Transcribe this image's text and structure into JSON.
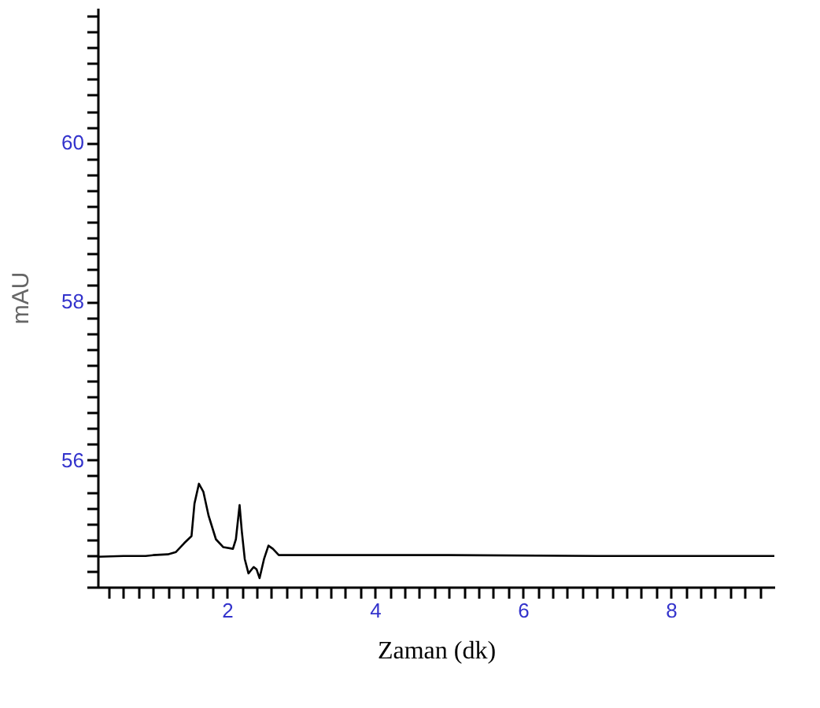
{
  "chart_data": {
    "type": "line",
    "xlabel": "Zaman (dk)",
    "ylabel": "mAU",
    "x": [
      0.25,
      0.6,
      0.9,
      1.0,
      1.2,
      1.31,
      1.42,
      1.52,
      1.56,
      1.62,
      1.68,
      1.75,
      1.85,
      1.95,
      2.08,
      2.12,
      2.17,
      2.2,
      2.24,
      2.29,
      2.36,
      2.4,
      2.44,
      2.5,
      2.56,
      2.62,
      2.7,
      3.5,
      5.0,
      7.0,
      9.4
    ],
    "series": [
      {
        "color": "#000000",
        "values": [
          54.78,
          54.79,
          54.79,
          54.8,
          54.81,
          54.84,
          54.95,
          55.04,
          55.45,
          55.7,
          55.6,
          55.3,
          55.0,
          54.9,
          54.88,
          55.0,
          55.43,
          55.1,
          54.75,
          54.57,
          54.65,
          54.62,
          54.51,
          54.75,
          54.92,
          54.88,
          54.8,
          54.8,
          54.8,
          54.79,
          54.79
        ]
      }
    ],
    "xlim": [
      0.25,
      9.4
    ],
    "ylim": [
      54.4,
      61.7
    ],
    "xticks": [
      {
        "value": 0.4,
        "label": null
      },
      {
        "value": 0.6,
        "label": null
      },
      {
        "value": 0.8,
        "label": null
      },
      {
        "value": 1.0,
        "label": null
      },
      {
        "value": 1.2,
        "label": null
      },
      {
        "value": 1.4,
        "label": null
      },
      {
        "value": 1.6,
        "label": null
      },
      {
        "value": 1.8,
        "label": null
      },
      2,
      {
        "value": 2.2,
        "label": null
      },
      {
        "value": 2.4,
        "label": null
      },
      {
        "value": 2.6,
        "label": null
      },
      {
        "value": 2.8,
        "label": null
      },
      {
        "value": 3.0,
        "label": null
      },
      {
        "value": 3.2,
        "label": null
      },
      {
        "value": 3.4,
        "label": null
      },
      {
        "value": 3.6,
        "label": null
      },
      {
        "value": 3.8,
        "label": null
      },
      4,
      {
        "value": 4.2,
        "label": null
      },
      {
        "value": 4.4,
        "label": null
      },
      {
        "value": 4.6,
        "label": null
      },
      {
        "value": 4.8,
        "label": null
      },
      {
        "value": 5.0,
        "label": null
      },
      {
        "value": 5.2,
        "label": null
      },
      {
        "value": 5.4,
        "label": null
      },
      {
        "value": 5.6,
        "label": null
      },
      {
        "value": 5.8,
        "label": null
      },
      6,
      {
        "value": 6.2,
        "label": null
      },
      {
        "value": 6.4,
        "label": null
      },
      {
        "value": 6.6,
        "label": null
      },
      {
        "value": 6.8,
        "label": null
      },
      {
        "value": 7.0,
        "label": null
      },
      {
        "value": 7.2,
        "label": null
      },
      {
        "value": 7.4,
        "label": null
      },
      {
        "value": 7.6,
        "label": null
      },
      {
        "value": 7.8,
        "label": null
      },
      8,
      {
        "value": 8.2,
        "label": null
      },
      {
        "value": 8.4,
        "label": null
      },
      {
        "value": 8.6,
        "label": null
      },
      {
        "value": 8.8,
        "label": null
      },
      {
        "value": 9.0,
        "label": null
      },
      {
        "value": 9.2,
        "label": null
      }
    ],
    "yticks": [
      {
        "value": 54.4,
        "label": null
      },
      {
        "value": 54.6,
        "label": null
      },
      {
        "value": 54.8,
        "label": null
      },
      {
        "value": 55.0,
        "label": null
      },
      {
        "value": 55.2,
        "label": null
      },
      {
        "value": 55.4,
        "label": null
      },
      {
        "value": 55.6,
        "label": null
      },
      {
        "value": 55.8,
        "label": null
      },
      56,
      {
        "value": 56.2,
        "label": null
      },
      {
        "value": 56.4,
        "label": null
      },
      {
        "value": 56.6,
        "label": null
      },
      {
        "value": 56.8,
        "label": null
      },
      {
        "value": 57.0,
        "label": null
      },
      {
        "value": 57.2,
        "label": null
      },
      {
        "value": 57.4,
        "label": null
      },
      {
        "value": 57.6,
        "label": null
      },
      {
        "value": 57.8,
        "label": null
      },
      58,
      {
        "value": 58.2,
        "label": null
      },
      {
        "value": 58.4,
        "label": null
      },
      {
        "value": 58.6,
        "label": null
      },
      {
        "value": 58.8,
        "label": null
      },
      {
        "value": 59.0,
        "label": null
      },
      {
        "value": 59.2,
        "label": null
      },
      {
        "value": 59.4,
        "label": null
      },
      {
        "value": 59.6,
        "label": null
      },
      {
        "value": 59.8,
        "label": null
      },
      60,
      {
        "value": 60.2,
        "label": null
      },
      {
        "value": 60.4,
        "label": null
      },
      {
        "value": 60.6,
        "label": null
      },
      {
        "value": 60.8,
        "label": null
      },
      {
        "value": 61.0,
        "label": null
      },
      {
        "value": 61.2,
        "label": null
      },
      {
        "value": 61.4,
        "label": null
      },
      {
        "value": 61.6,
        "label": null
      }
    ],
    "grid": false,
    "line_style": "solid",
    "marker": "none"
  }
}
